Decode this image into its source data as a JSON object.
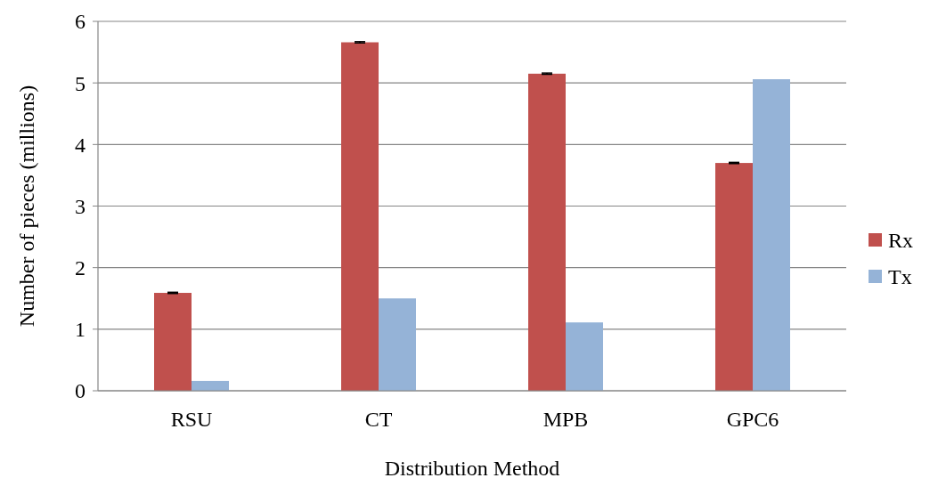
{
  "chart_data": {
    "type": "bar",
    "xlabel": "Distribution Method",
    "ylabel": "Number of pieces (millions)",
    "categories": [
      "RSU",
      "CT",
      "MPB",
      "GPC6"
    ],
    "series": [
      {
        "name": "Rx",
        "color": "#c0504d",
        "values": [
          1.59,
          5.66,
          5.15,
          3.7
        ],
        "errors": [
          0.01,
          0.01,
          0.01,
          0.01
        ]
      },
      {
        "name": "Tx",
        "color": "#95b3d7",
        "values": [
          0.16,
          1.5,
          1.11,
          5.06
        ]
      }
    ],
    "ylim": [
      0,
      6
    ],
    "yticks": [
      0,
      1,
      2,
      3,
      4,
      5,
      6
    ],
    "grid": "y",
    "legend": "right"
  }
}
